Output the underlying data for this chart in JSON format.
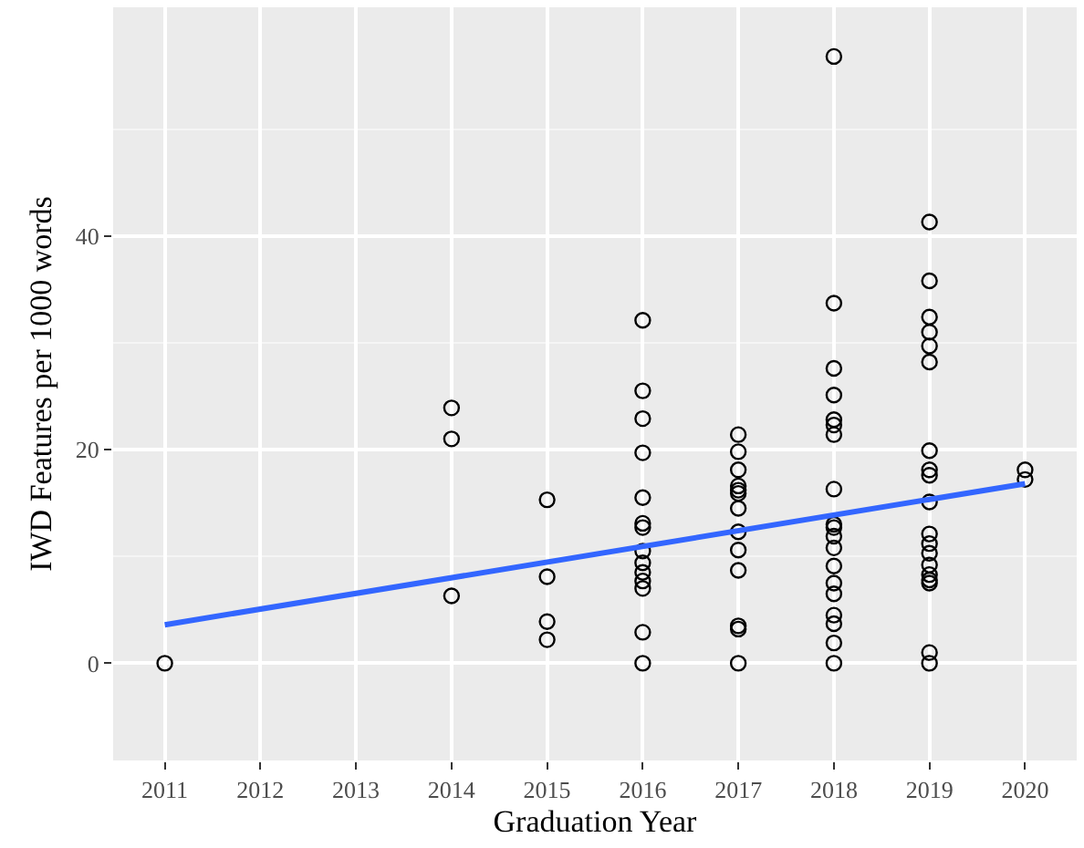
{
  "chart_data": {
    "type": "scatter",
    "xlabel": "Graduation Year",
    "ylabel": "IWD Features per 1000 words",
    "xlim": [
      2010.46,
      2020.54
    ],
    "xticks": [
      2011,
      2012,
      2013,
      2014,
      2015,
      2016,
      2017,
      2018,
      2019,
      2020
    ],
    "ylim": [
      -9.1,
      61.4
    ],
    "yticks": [
      0,
      20,
      40
    ],
    "grid": true,
    "marker": "circle",
    "series": [
      {
        "color": "#000000",
        "x": [
          2011,
          2014,
          2014,
          2014,
          2015,
          2015,
          2015,
          2015,
          2016,
          2016,
          2016,
          2016,
          2016,
          2016,
          2016,
          2016,
          2016,
          2016,
          2016,
          2016,
          2016,
          2016,
          2017,
          2017,
          2017,
          2017,
          2017,
          2017,
          2017,
          2017,
          2017,
          2017,
          2017,
          2017,
          2017,
          2018,
          2018,
          2018,
          2018,
          2018,
          2018,
          2018,
          2018,
          2018,
          2018,
          2018,
          2018,
          2018,
          2018,
          2018,
          2018,
          2018,
          2018,
          2018,
          2019,
          2019,
          2019,
          2019,
          2019,
          2019,
          2019,
          2019,
          2019,
          2019,
          2019,
          2019,
          2019,
          2019,
          2019,
          2019,
          2019,
          2019,
          2019,
          2020,
          2020
        ],
        "values": [
          0,
          23.9,
          21.0,
          6.3,
          15.3,
          8.1,
          3.9,
          2.2,
          32.1,
          25.5,
          22.9,
          19.7,
          15.5,
          13.1,
          12.7,
          10.5,
          9.4,
          8.5,
          7.7,
          7.0,
          2.9,
          0,
          21.4,
          19.8,
          18.1,
          16.6,
          16.2,
          15.9,
          14.5,
          12.3,
          10.6,
          8.7,
          3.5,
          3.2,
          0,
          56.8,
          33.7,
          27.6,
          25.1,
          22.8,
          22.3,
          21.4,
          16.3,
          13.0,
          12.7,
          11.9,
          10.8,
          9.1,
          7.5,
          6.5,
          4.5,
          3.7,
          1.9,
          0,
          41.3,
          35.8,
          32.4,
          31.0,
          29.7,
          28.2,
          19.9,
          18.1,
          17.6,
          15.1,
          12.1,
          11.2,
          10.3,
          9.2,
          8.3,
          7.8,
          7.5,
          1.0,
          0,
          18.1,
          17.2
        ]
      },
      {
        "type": "line",
        "marker": "none",
        "color": "#3366ff",
        "x": [
          2011,
          2020
        ],
        "values": [
          3.6,
          16.8
        ]
      }
    ]
  }
}
